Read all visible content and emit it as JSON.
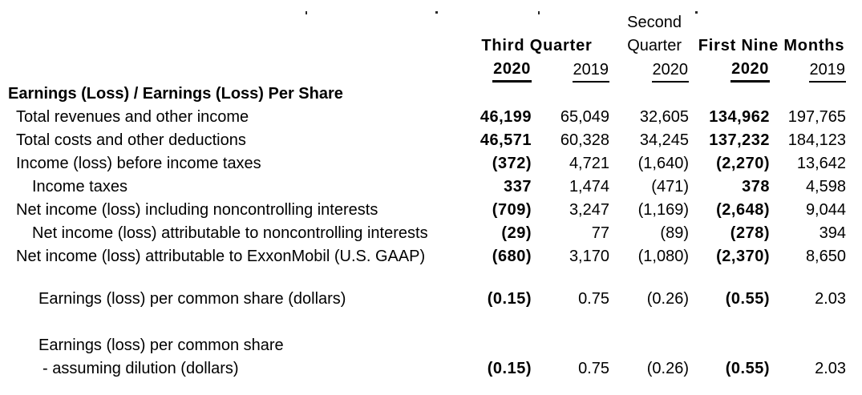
{
  "header": {
    "second_quarter_line1": "Second",
    "third_quarter_label": "Third Quarter",
    "second_quarter_line2": "Quarter",
    "first_nine_months_label": "First Nine Months",
    "years": [
      "2020",
      "2019",
      "2020",
      "2020",
      "2019"
    ]
  },
  "columns": {
    "bold_value_columns": [
      1,
      4
    ],
    "text_color": "#000000",
    "background_color": "#ffffff"
  },
  "rows": [
    {
      "type": "row",
      "label": "Earnings (Loss) / Earnings (Loss) Per Share",
      "bold": true,
      "indent": 0,
      "values": null
    },
    {
      "type": "row",
      "label": "Total revenues and other income",
      "bold": false,
      "indent": 1,
      "values": [
        "46,199",
        "65,049",
        "32,605",
        "134,962",
        "197,765"
      ]
    },
    {
      "type": "row",
      "label": "Total costs and other deductions",
      "bold": false,
      "indent": 1,
      "values": [
        "46,571",
        "60,328",
        "34,245",
        "137,232",
        "184,123"
      ]
    },
    {
      "type": "row",
      "label": "Income (loss) before income taxes",
      "bold": false,
      "indent": 1,
      "values": [
        "(372)",
        "4,721",
        "(1,640)",
        "(2,270)",
        "13,642"
      ]
    },
    {
      "type": "row",
      "label": "Income taxes",
      "bold": false,
      "indent": 2,
      "values": [
        "337",
        "1,474",
        "(471)",
        "378",
        "4,598"
      ]
    },
    {
      "type": "row",
      "label": "Net income (loss) including noncontrolling interests",
      "bold": false,
      "indent": 1,
      "values": [
        "(709)",
        "3,247",
        "(1,169)",
        "(2,648)",
        "9,044"
      ]
    },
    {
      "type": "row",
      "label": "Net income (loss) attributable to noncontrolling interests",
      "bold": false,
      "indent": 2,
      "values": [
        "(29)",
        "77",
        "(89)",
        "(278)",
        "394"
      ]
    },
    {
      "type": "row",
      "label": "Net income (loss) attributable to ExxonMobil (U.S. GAAP)",
      "bold": false,
      "indent": 1,
      "values": [
        "(680)",
        "3,170",
        "(1,080)",
        "(2,370)",
        "8,650"
      ]
    },
    {
      "type": "spacer",
      "size": "small"
    },
    {
      "type": "row",
      "label": "Earnings (loss) per common share (dollars)",
      "bold": false,
      "indent": 3,
      "values": [
        "(0.15)",
        "0.75",
        "(0.26)",
        "(0.55)",
        "2.03"
      ]
    },
    {
      "type": "spacer",
      "size": "large"
    },
    {
      "type": "row",
      "label": "Earnings (loss) per common share",
      "bold": false,
      "indent": 3,
      "values": null
    },
    {
      "type": "row",
      "label": "- assuming dilution (dollars)",
      "bold": false,
      "indent": 4,
      "values": [
        "(0.15)",
        "0.75",
        "(0.26)",
        "(0.55)",
        "2.03"
      ]
    }
  ]
}
